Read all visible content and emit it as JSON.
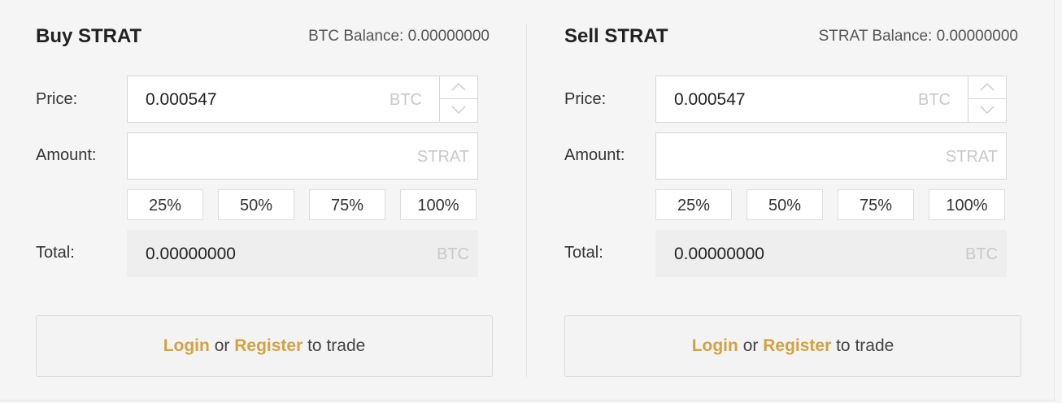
{
  "buy": {
    "title": "Buy STRAT",
    "balance": "BTC Balance: 0.00000000",
    "price_label": "Price:",
    "price_value": "0.000547",
    "price_unit": "BTC",
    "amount_label": "Amount:",
    "amount_value": "",
    "amount_unit": "STRAT",
    "percents": [
      "25%",
      "50%",
      "75%",
      "100%"
    ],
    "total_label": "Total:",
    "total_value": "0.00000000",
    "total_unit": "BTC",
    "cta": {
      "login": "Login",
      "or": "or",
      "register": "Register",
      "suffix": "to trade"
    }
  },
  "sell": {
    "title": "Sell STRAT",
    "balance": "STRAT Balance: 0.00000000",
    "price_label": "Price:",
    "price_value": "0.000547",
    "price_unit": "BTC",
    "amount_label": "Amount:",
    "amount_value": "",
    "amount_unit": "STRAT",
    "percents": [
      "25%",
      "50%",
      "75%",
      "100%"
    ],
    "total_label": "Total:",
    "total_value": "0.00000000",
    "total_unit": "BTC",
    "cta": {
      "login": "Login",
      "or": "or",
      "register": "Register",
      "suffix": "to trade"
    }
  },
  "colors": {
    "link": "#d2a244",
    "background": "#f5f5f5"
  }
}
